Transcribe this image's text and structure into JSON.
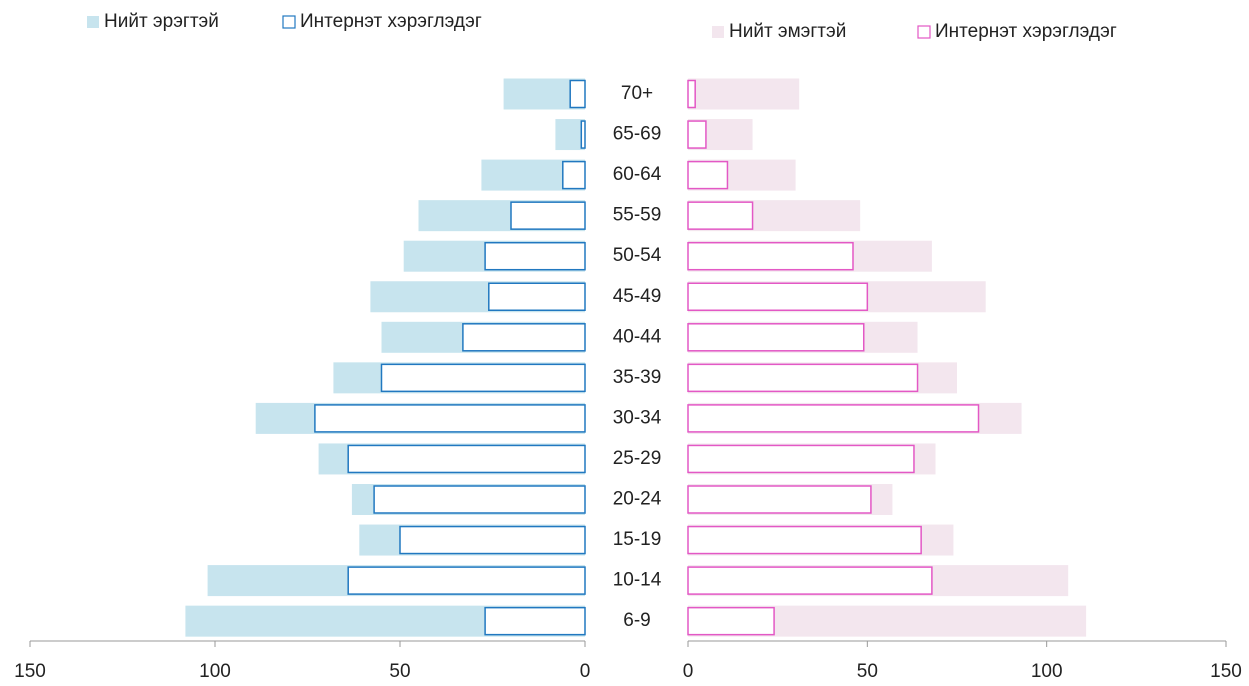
{
  "chart_data": [
    {
      "type": "bar",
      "orientation": "horizontal",
      "categories": [
        "70+",
        "65-69",
        "60-64",
        "55-59",
        "50-54",
        "45-49",
        "40-44",
        "35-39",
        "30-34",
        "25-29",
        "20-24",
        "15-19",
        "10-14",
        "6-9"
      ],
      "series": [
        {
          "name": "Нийт эрэгтэй",
          "color": "#c7e4ee",
          "style": "filled",
          "values": [
            22,
            8,
            28,
            45,
            49,
            58,
            55,
            68,
            89,
            72,
            63,
            61,
            102,
            108
          ]
        },
        {
          "name": "Интернэт хэрэглэдэг",
          "color": "#2178c0",
          "style": "outline",
          "values": [
            4,
            1,
            6,
            20,
            27,
            26,
            33,
            55,
            73,
            64,
            57,
            50,
            64,
            27
          ]
        }
      ],
      "xlim": [
        150,
        0
      ],
      "xticks": [
        150,
        100,
        50,
        0
      ]
    },
    {
      "type": "bar",
      "orientation": "horizontal",
      "series": [
        {
          "name": "Нийт эмэгтэй",
          "color": "#f3e6ee",
          "style": "filled",
          "values": [
            31,
            18,
            30,
            48,
            68,
            83,
            64,
            75,
            93,
            69,
            57,
            74,
            106,
            111
          ]
        },
        {
          "name": "Интернэт хэрэглэдэг",
          "color": "#e358c5",
          "style": "outline",
          "values": [
            2,
            5,
            11,
            18,
            46,
            50,
            49,
            64,
            81,
            63,
            51,
            65,
            68,
            24
          ]
        }
      ],
      "xlim": [
        0,
        150
      ],
      "xticks": [
        0,
        50,
        100,
        150
      ]
    }
  ]
}
